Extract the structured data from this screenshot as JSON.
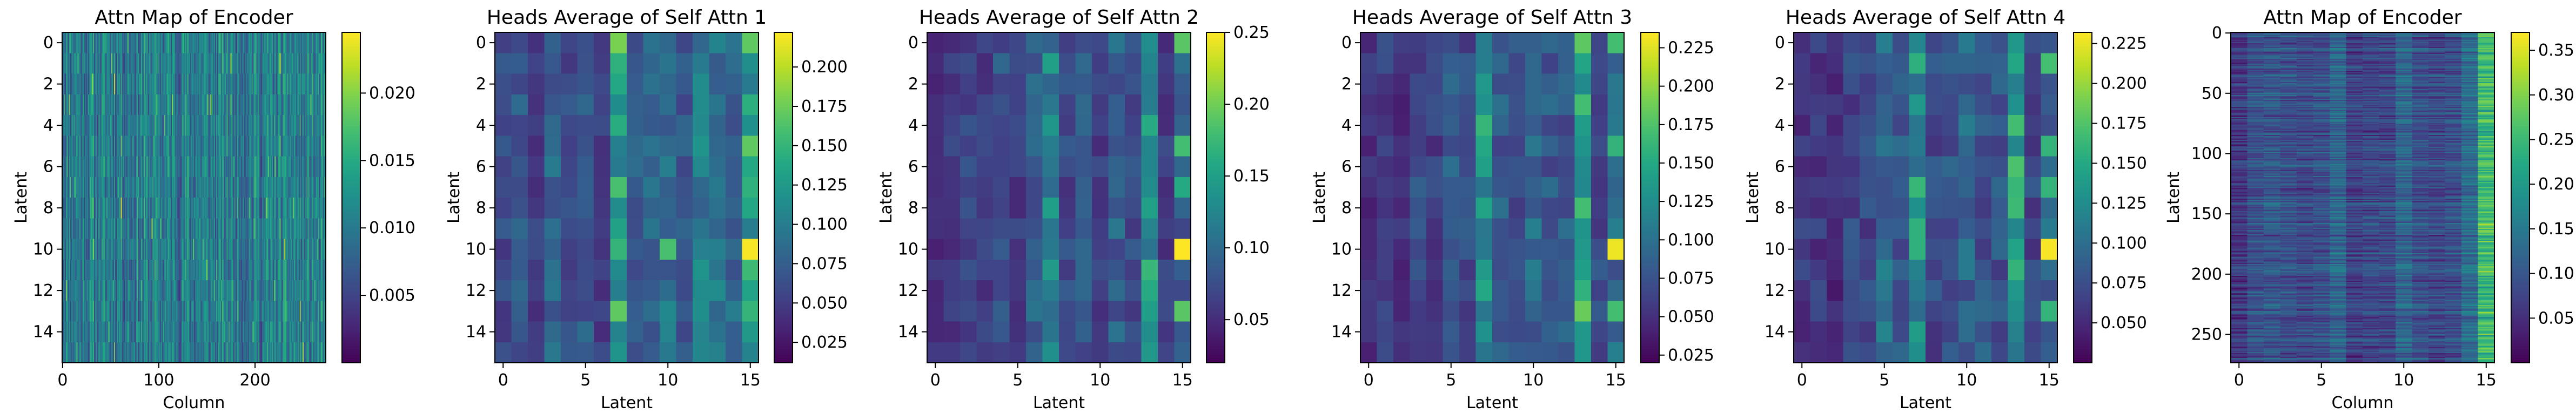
{
  "chart_data": [
    {
      "type": "heatmap",
      "title": "Attn Map of Encoder",
      "xlabel": "Column",
      "ylabel": "Latent",
      "rows": 16,
      "cols": 274,
      "x_ticks": [
        0,
        100,
        200
      ],
      "y_ticks": [
        0,
        2,
        4,
        6,
        8,
        10,
        12,
        14
      ],
      "colorbar": {
        "min": 0.0,
        "max": 0.0245,
        "ticks": [
          "0.005",
          "0.010",
          "0.015",
          "0.020"
        ]
      },
      "pattern": "noise_vertical",
      "seed": 11
    },
    {
      "type": "heatmap",
      "title": "Heads Average of Self Attn 1",
      "xlabel": "Latent",
      "ylabel": "Latent",
      "rows": 16,
      "cols": 16,
      "x_ticks": [
        0,
        5,
        10,
        15
      ],
      "y_ticks": [
        0,
        2,
        4,
        6,
        8,
        10,
        12,
        14
      ],
      "colorbar": {
        "min": 0.012,
        "max": 0.222,
        "ticks": [
          "0.025",
          "0.050",
          "0.075",
          "0.100",
          "0.125",
          "0.150",
          "0.175",
          "0.200"
        ]
      },
      "column_means": [
        0.06,
        0.07,
        0.05,
        0.08,
        0.06,
        0.07,
        0.05,
        0.13,
        0.07,
        0.08,
        0.09,
        0.07,
        0.1,
        0.09,
        0.08,
        0.13
      ],
      "highlights": [
        [
          0,
          7,
          0.18
        ],
        [
          0,
          15,
          0.17
        ],
        [
          5,
          15,
          0.17
        ],
        [
          7,
          7,
          0.16
        ],
        [
          10,
          7,
          0.15
        ],
        [
          10,
          10,
          0.16
        ],
        [
          10,
          15,
          0.22
        ],
        [
          13,
          7,
          0.17
        ],
        [
          13,
          15,
          0.15
        ]
      ],
      "seed": 21
    },
    {
      "type": "heatmap",
      "title": "Heads Average of Self Attn 2",
      "xlabel": "Latent",
      "ylabel": "Latent",
      "rows": 16,
      "cols": 16,
      "x_ticks": [
        0,
        5,
        10,
        15
      ],
      "y_ticks": [
        0,
        2,
        4,
        6,
        8,
        10,
        12,
        14
      ],
      "colorbar": {
        "min": 0.02,
        "max": 0.25,
        "ticks": [
          "0.05",
          "0.10",
          "0.15",
          "0.20",
          "0.25"
        ]
      },
      "column_means": [
        0.05,
        0.06,
        0.07,
        0.06,
        0.08,
        0.06,
        0.09,
        0.12,
        0.07,
        0.08,
        0.06,
        0.09,
        0.07,
        0.14,
        0.06,
        0.09
      ],
      "highlights": [
        [
          0,
          15,
          0.19
        ],
        [
          5,
          15,
          0.18
        ],
        [
          7,
          15,
          0.16
        ],
        [
          10,
          15,
          0.25
        ],
        [
          13,
          15,
          0.19
        ],
        [
          1,
          7,
          0.15
        ]
      ],
      "seed": 31
    },
    {
      "type": "heatmap",
      "title": "Heads Average of Self Attn 3",
      "xlabel": "Latent",
      "ylabel": "Latent",
      "rows": 16,
      "cols": 16,
      "x_ticks": [
        0,
        5,
        10,
        15
      ],
      "y_ticks": [
        0,
        2,
        4,
        6,
        8,
        10,
        12,
        14
      ],
      "colorbar": {
        "min": 0.02,
        "max": 0.235,
        "ticks": [
          "0.025",
          "0.050",
          "0.075",
          "0.100",
          "0.125",
          "0.150",
          "0.175",
          "0.200",
          "0.225"
        ]
      },
      "column_means": [
        0.05,
        0.06,
        0.05,
        0.07,
        0.06,
        0.08,
        0.07,
        0.13,
        0.08,
        0.07,
        0.09,
        0.08,
        0.08,
        0.15,
        0.07,
        0.09
      ],
      "highlights": [
        [
          0,
          15,
          0.17
        ],
        [
          5,
          15,
          0.16
        ],
        [
          10,
          15,
          0.23
        ],
        [
          13,
          15,
          0.17
        ]
      ],
      "seed": 41
    },
    {
      "type": "heatmap",
      "title": "Heads Average of Self Attn 4",
      "xlabel": "Latent",
      "ylabel": "Latent",
      "rows": 16,
      "cols": 16,
      "x_ticks": [
        0,
        5,
        10,
        15
      ],
      "y_ticks": [
        0,
        2,
        4,
        6,
        8,
        10,
        12,
        14
      ],
      "colorbar": {
        "min": 0.025,
        "max": 0.232,
        "ticks": [
          "0.050",
          "0.075",
          "0.100",
          "0.125",
          "0.150",
          "0.175",
          "0.200",
          "0.225"
        ]
      },
      "column_means": [
        0.06,
        0.06,
        0.05,
        0.07,
        0.07,
        0.1,
        0.08,
        0.13,
        0.07,
        0.08,
        0.09,
        0.08,
        0.08,
        0.14,
        0.07,
        0.09
      ],
      "highlights": [
        [
          1,
          15,
          0.17
        ],
        [
          5,
          15,
          0.16
        ],
        [
          7,
          15,
          0.16
        ],
        [
          10,
          15,
          0.23
        ],
        [
          13,
          15,
          0.16
        ]
      ],
      "seed": 51
    },
    {
      "type": "heatmap",
      "title": "Attn Map of Encoder",
      "xlabel": "Column",
      "ylabel": "Latent",
      "rows": 274,
      "cols": 16,
      "x_ticks": [
        0,
        5,
        10,
        15
      ],
      "y_ticks": [
        0,
        50,
        100,
        150,
        200,
        250
      ],
      "colorbar": {
        "min": 0.0,
        "max": 0.37,
        "ticks": [
          "0.05",
          "0.10",
          "0.15",
          "0.20",
          "0.25",
          "0.30",
          "0.35"
        ]
      },
      "pattern": "noise_horizontal",
      "column_means": [
        0.06,
        0.09,
        0.1,
        0.09,
        0.08,
        0.09,
        0.12,
        0.07,
        0.08,
        0.08,
        0.12,
        0.09,
        0.08,
        0.09,
        0.13,
        0.22
      ],
      "seed": 61
    }
  ]
}
